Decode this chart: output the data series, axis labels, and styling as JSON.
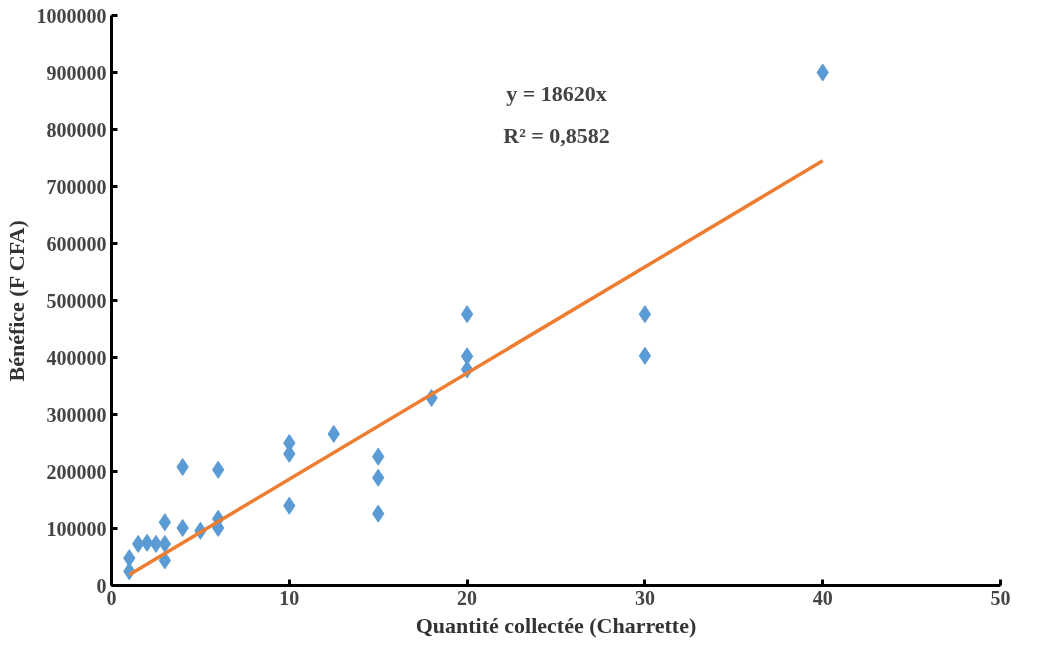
{
  "chart_data": {
    "type": "scatter",
    "xlabel": "Quantité collectée (Charrette)",
    "ylabel": "Bénéfice (F CFA)",
    "xlim": [
      0,
      50
    ],
    "xticks": [
      0,
      10,
      20,
      30,
      40,
      50
    ],
    "ylim": [
      0,
      1000000
    ],
    "yticks": [
      0,
      100000,
      200000,
      300000,
      400000,
      500000,
      600000,
      700000,
      800000,
      900000,
      1000000
    ],
    "grid": false,
    "marker": "diamond",
    "annotations": [
      "y = 18620x",
      "R² = 0,8582"
    ],
    "series": [
      {
        "color": "#5b9bd5",
        "x": [
          1,
          1,
          1.5,
          2,
          2.5,
          3,
          3,
          3,
          4,
          4,
          5,
          6,
          6,
          6,
          10,
          10,
          10,
          12.5,
          15,
          15,
          15,
          18,
          20,
          20,
          20,
          30,
          30,
          40
        ],
        "values": [
          25000,
          48000,
          73000,
          75000,
          73000,
          73000,
          111000,
          44000,
          208000,
          101000,
          96000,
          203000,
          117000,
          101000,
          250000,
          231000,
          140000,
          266000,
          226000,
          189000,
          126000,
          329000,
          476000,
          402000,
          379000,
          476000,
          403000,
          900000
        ]
      },
      {
        "type": "line",
        "color": "#ed7d31",
        "line_style": "solid",
        "marker": "none",
        "x": [
          1,
          40
        ],
        "values": [
          19000,
          745000
        ]
      }
    ]
  }
}
